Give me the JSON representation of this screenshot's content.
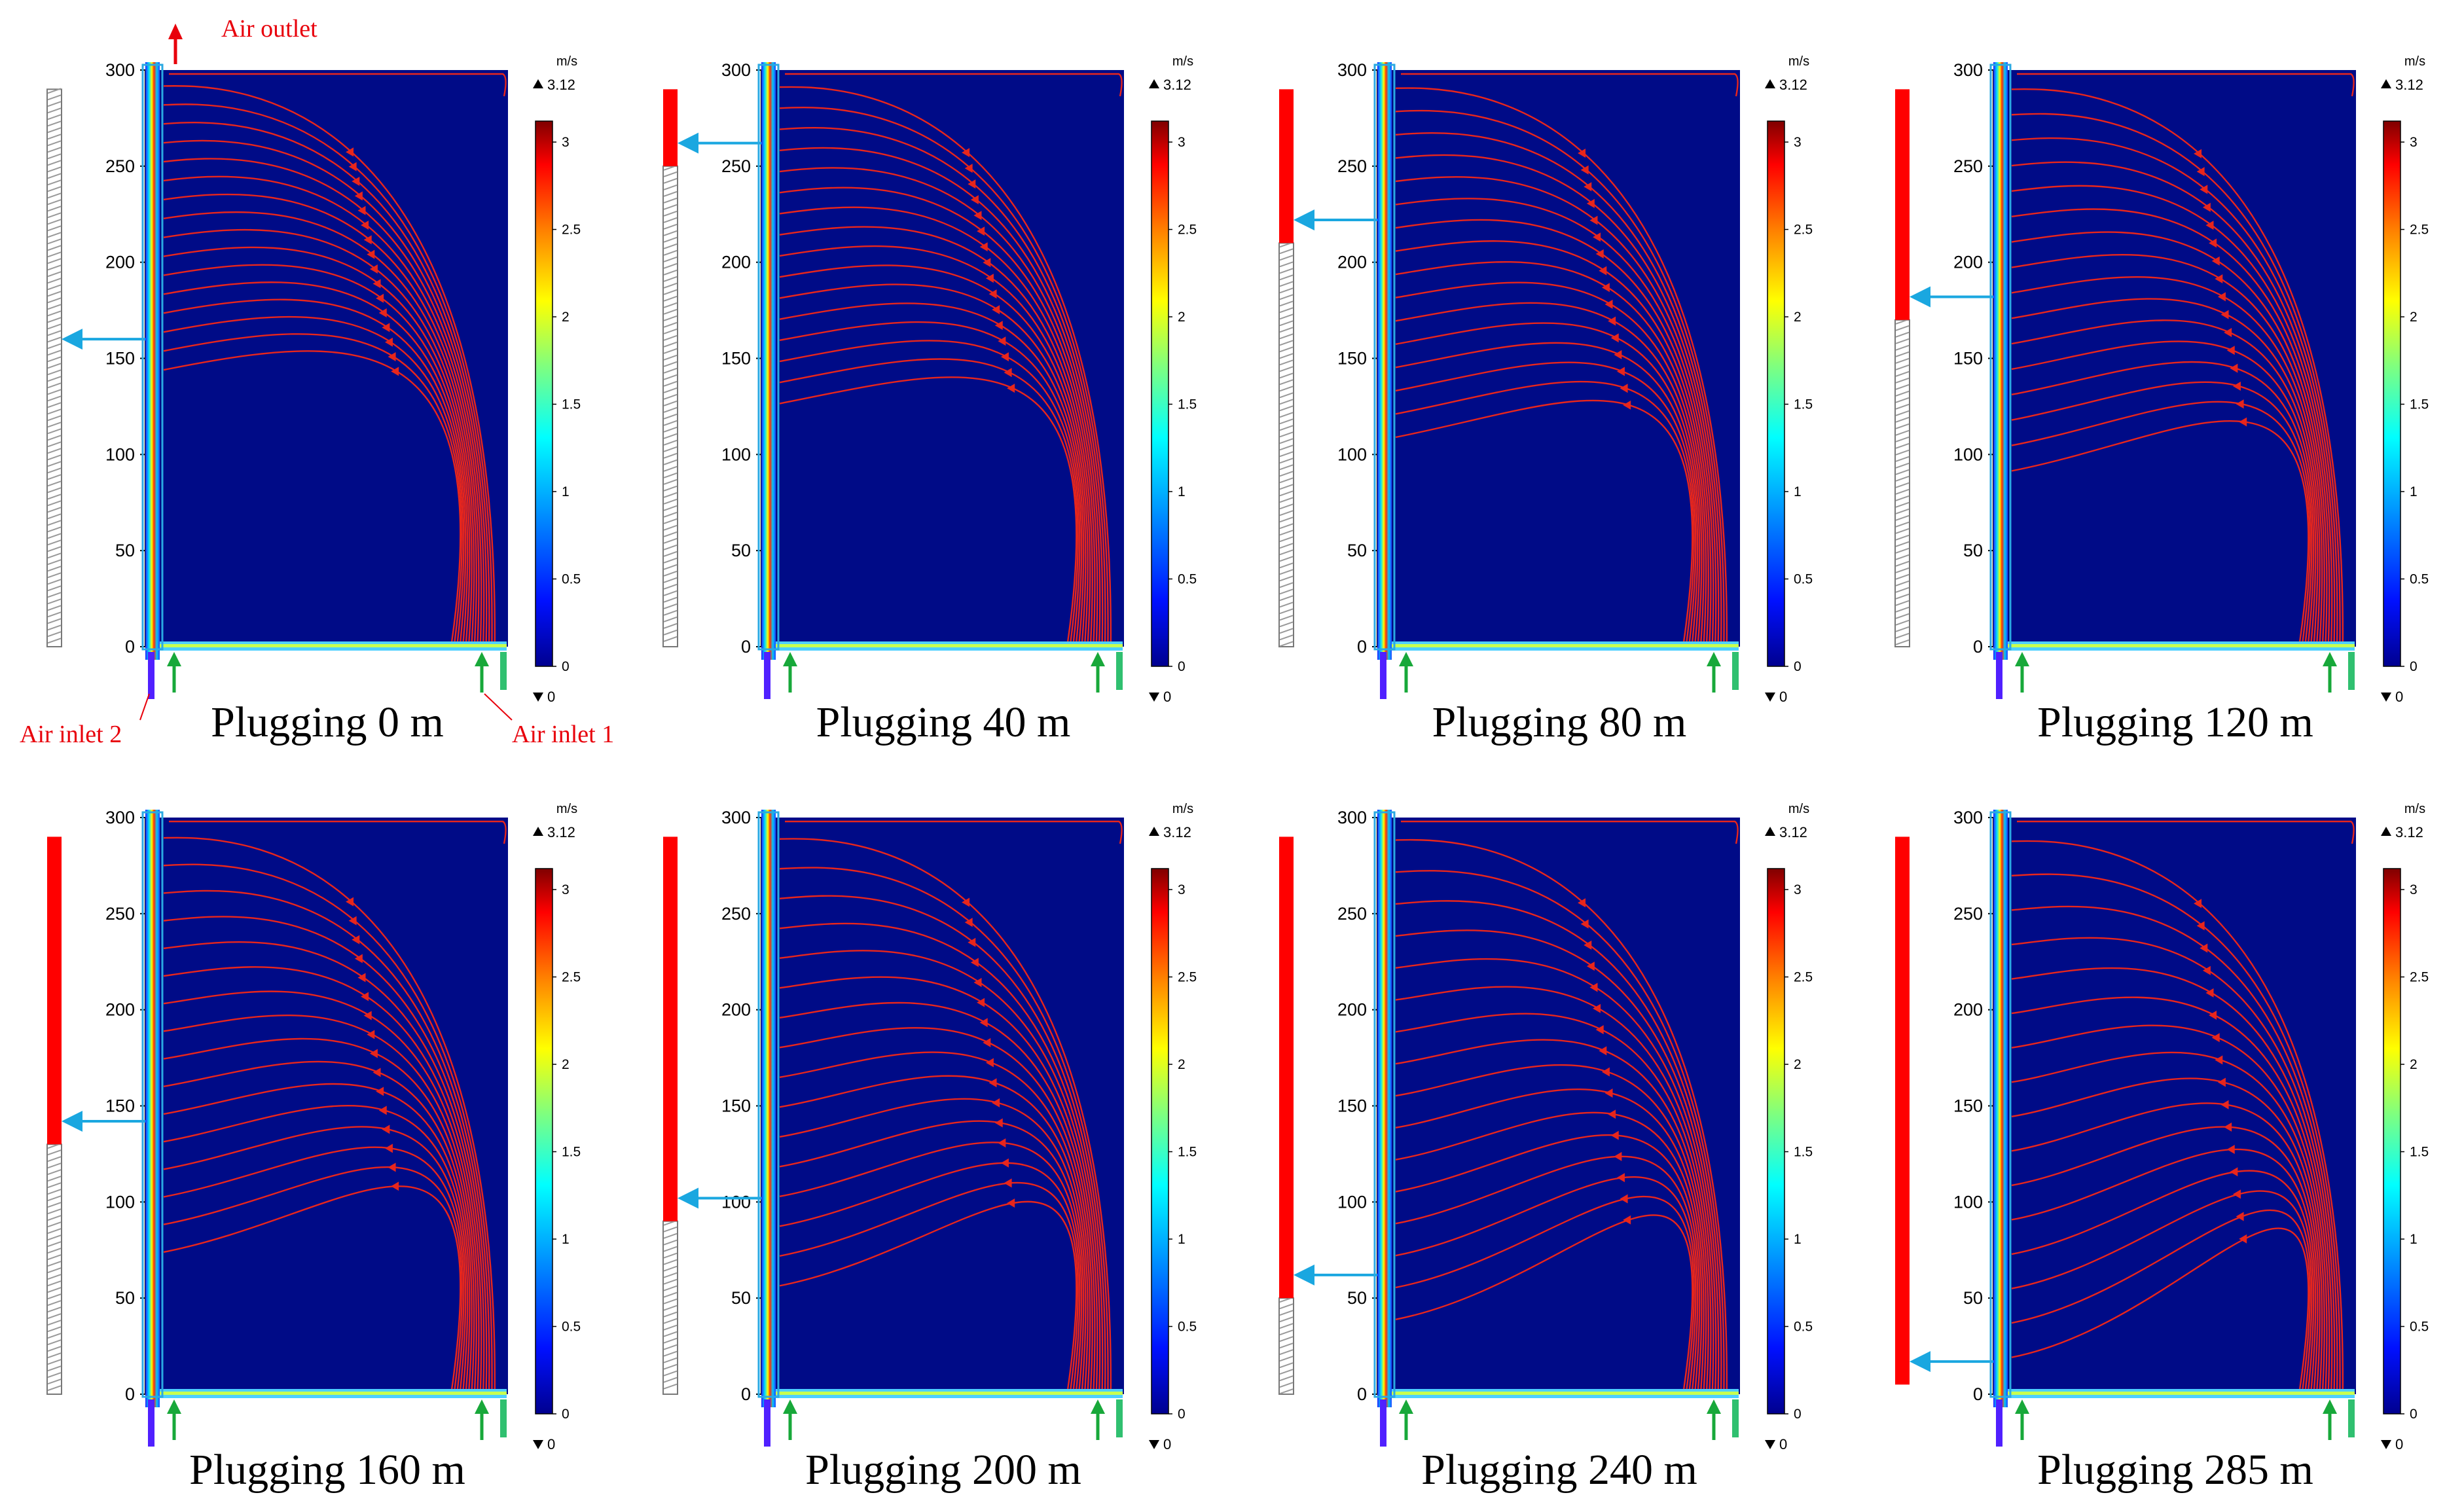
{
  "figure": {
    "y_ticks": [
      "300",
      "250",
      "200",
      "150",
      "100",
      "50",
      "0"
    ],
    "colorbar": {
      "unit": "m/s",
      "max_label": "3.12",
      "min_label": "0",
      "ticks": [
        "3",
        "2.5",
        "2",
        "1.5",
        "1",
        "0.5",
        "0"
      ],
      "max_marker_icon": "triangle-up-icon",
      "min_marker_icon": "triangle-down-icon"
    },
    "annotations": {
      "air_outlet": "Air outlet",
      "air_inlet_1": "Air inlet 1",
      "air_inlet_2": "Air inlet 2"
    },
    "colors": {
      "field": "#000b87",
      "streamline": "#e8261c",
      "plug_bar": "#ff0000",
      "outlet_arrow": "#1aa7e0",
      "inlet_arrow": "#18a83a",
      "annotation_text": "#e8000b"
    },
    "panels": [
      {
        "title": "Plugging 0 m",
        "plugging_m": 0
      },
      {
        "title": "Plugging 40 m",
        "plugging_m": 40
      },
      {
        "title": "Plugging 80 m",
        "plugging_m": 80
      },
      {
        "title": "Plugging 120 m",
        "plugging_m": 120
      },
      {
        "title": "Plugging 160 m",
        "plugging_m": 160
      },
      {
        "title": "Plugging 200 m",
        "plugging_m": 200
      },
      {
        "title": "Plugging 240 m",
        "plugging_m": 240
      },
      {
        "title": "Plugging 285 m",
        "plugging_m": 285
      }
    ]
  }
}
